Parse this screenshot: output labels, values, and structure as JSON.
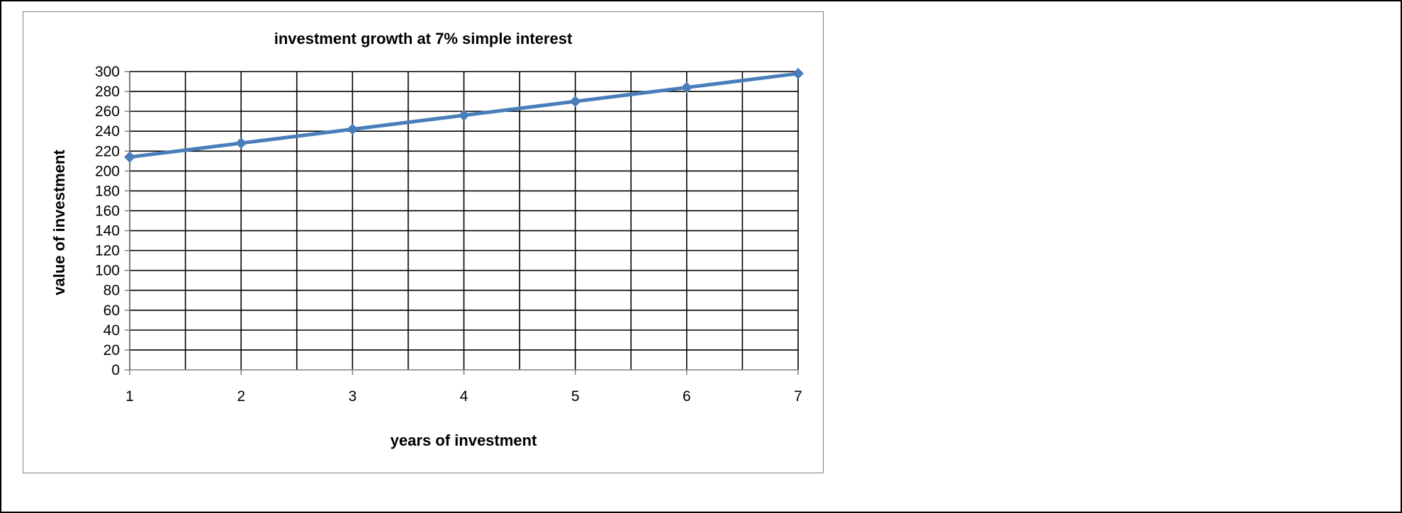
{
  "chart_data": {
    "type": "line",
    "title": "investment growth at 7% simple interest",
    "xlabel": "years of investment",
    "ylabel": "value of investment",
    "x": [
      1,
      2,
      3,
      4,
      5,
      6,
      7
    ],
    "series": [
      {
        "values": [
          214,
          228,
          242,
          256,
          270,
          284,
          298
        ]
      }
    ],
    "ylim": [
      0,
      300
    ],
    "yticks": [
      "0",
      "20",
      "40",
      "60",
      "80",
      "100",
      "120",
      "140",
      "160",
      "180",
      "200",
      "220",
      "240",
      "260",
      "280",
      "300"
    ],
    "xticks": [
      "1",
      "2",
      "3",
      "4",
      "5",
      "6",
      "7"
    ],
    "grid": true,
    "legend": "none",
    "colors": {
      "line": "#4a7ebb",
      "grid": "#000000",
      "frame": "#7f7f7f"
    }
  }
}
